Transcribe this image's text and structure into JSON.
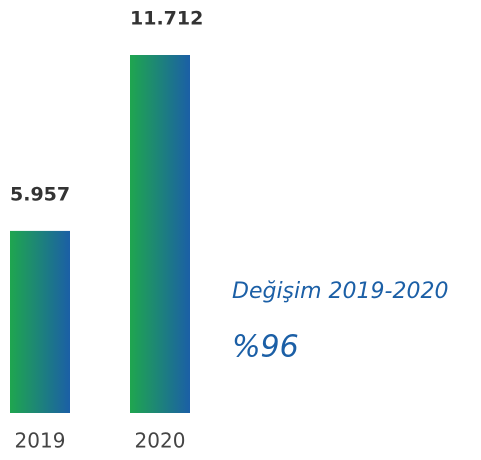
{
  "chart_data": {
    "type": "bar",
    "categories": [
      "2019",
      "2020"
    ],
    "values": [
      5957,
      11712
    ],
    "value_labels": [
      "5.957",
      "11.712"
    ],
    "annotations": [
      "Değişim 2019-2020",
      "%96"
    ],
    "colors": [
      "#1fa64f",
      "#1b5fa6"
    ]
  }
}
